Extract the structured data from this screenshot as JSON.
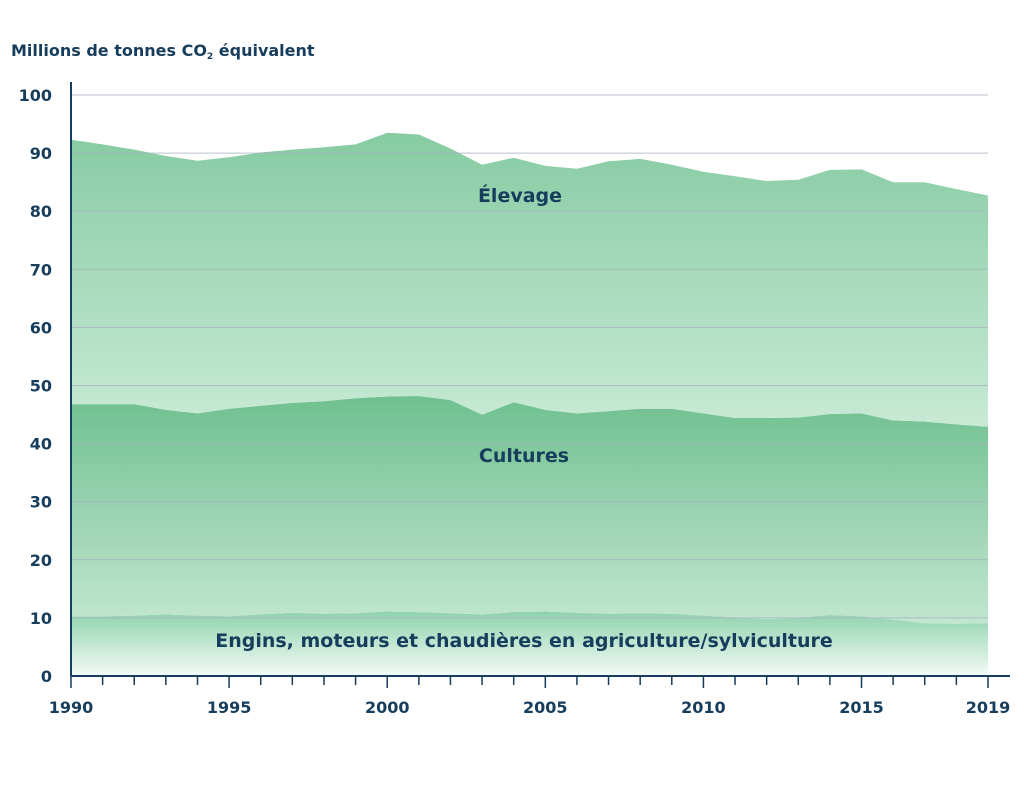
{
  "chart_data": {
    "type": "area",
    "stacked": true,
    "ylabel": {
      "prefix": "Millions de tonnes CO",
      "subscript": "2",
      "suffix": " équivalent"
    },
    "ylim": [
      0,
      100
    ],
    "yticks": [
      0,
      10,
      20,
      30,
      40,
      50,
      60,
      70,
      80,
      90,
      100
    ],
    "xlim": [
      1990,
      2019
    ],
    "xticks": [
      1990,
      1995,
      2000,
      2005,
      2010,
      2015,
      2019
    ],
    "grid": true,
    "x": [
      1990,
      1991,
      1992,
      1993,
      1994,
      1995,
      1996,
      1997,
      1998,
      1999,
      2000,
      2001,
      2002,
      2003,
      2004,
      2005,
      2006,
      2007,
      2008,
      2009,
      2010,
      2011,
      2012,
      2013,
      2014,
      2015,
      2016,
      2017,
      2018,
      2019
    ],
    "series": [
      {
        "name": "Engins, moteurs et chaudières en agriculture/sylviculture",
        "values": [
          10.3,
          10.3,
          10.4,
          10.6,
          10.4,
          10.3,
          10.6,
          10.9,
          10.7,
          10.8,
          11.1,
          11.0,
          10.8,
          10.6,
          11.0,
          11.1,
          10.9,
          10.7,
          10.8,
          10.7,
          10.4,
          10.1,
          9.8,
          10.0,
          10.5,
          10.3,
          9.7,
          9.1,
          9.0,
          9.1
        ],
        "cumulative_top": [
          10.3,
          10.3,
          10.4,
          10.6,
          10.4,
          10.3,
          10.6,
          10.9,
          10.7,
          10.8,
          11.1,
          11.0,
          10.8,
          10.6,
          11.0,
          11.1,
          10.9,
          10.7,
          10.8,
          10.7,
          10.4,
          10.1,
          9.8,
          10.0,
          10.5,
          10.3,
          9.7,
          9.1,
          9.0,
          9.1
        ],
        "color": "#9fd9b8"
      },
      {
        "name": "Cultures",
        "values": [
          36.5,
          36.5,
          36.4,
          35.2,
          34.8,
          35.7,
          35.9,
          36.1,
          36.6,
          37.0,
          37.0,
          37.2,
          36.7,
          34.4,
          36.1,
          34.7,
          34.3,
          34.9,
          35.2,
          35.3,
          34.8,
          34.3,
          34.6,
          34.5,
          34.6,
          34.9,
          34.3,
          34.7,
          34.3,
          33.8
        ],
        "cumulative_top": [
          46.8,
          46.8,
          46.8,
          45.8,
          45.2,
          46.0,
          46.5,
          47.0,
          47.3,
          47.8,
          48.1,
          48.2,
          47.5,
          45.0,
          47.1,
          45.8,
          45.2,
          45.6,
          46.0,
          46.0,
          45.2,
          44.4,
          44.4,
          44.5,
          45.1,
          45.2,
          44.0,
          43.8,
          43.3,
          42.9
        ],
        "color": "#6fc08f"
      },
      {
        "name": "Élevage",
        "values": [
          45.5,
          44.7,
          43.8,
          43.7,
          43.5,
          43.3,
          43.6,
          43.6,
          43.7,
          43.7,
          45.4,
          45.0,
          43.3,
          43.0,
          42.1,
          42.0,
          42.1,
          43.0,
          43.0,
          42.0,
          41.8,
          41.6,
          40.8,
          40.9,
          42.0,
          42.0,
          41.0,
          41.2,
          40.5,
          39.8
        ],
        "cumulative_top": [
          92.3,
          91.5,
          90.6,
          89.5,
          88.7,
          89.3,
          90.1,
          90.6,
          91.0,
          91.5,
          93.5,
          93.2,
          90.8,
          88.0,
          89.2,
          87.8,
          87.3,
          88.6,
          89.0,
          88.0,
          86.8,
          86.0,
          85.2,
          85.4,
          87.1,
          87.2,
          85.0,
          85.0,
          83.8,
          82.7
        ],
        "color": "#8dcca6"
      }
    ],
    "annotations": {
      "elevage": "Élevage",
      "cultures": "Cultures",
      "engins": "Engins, moteurs et chaudières en agriculture/sylviculture"
    },
    "colors": {
      "axis": "#173d5c",
      "grid": "#a8b3bf",
      "text": "#173d5c",
      "layer_top": "#86cba2",
      "layer_fade": "#dff3e7"
    }
  }
}
